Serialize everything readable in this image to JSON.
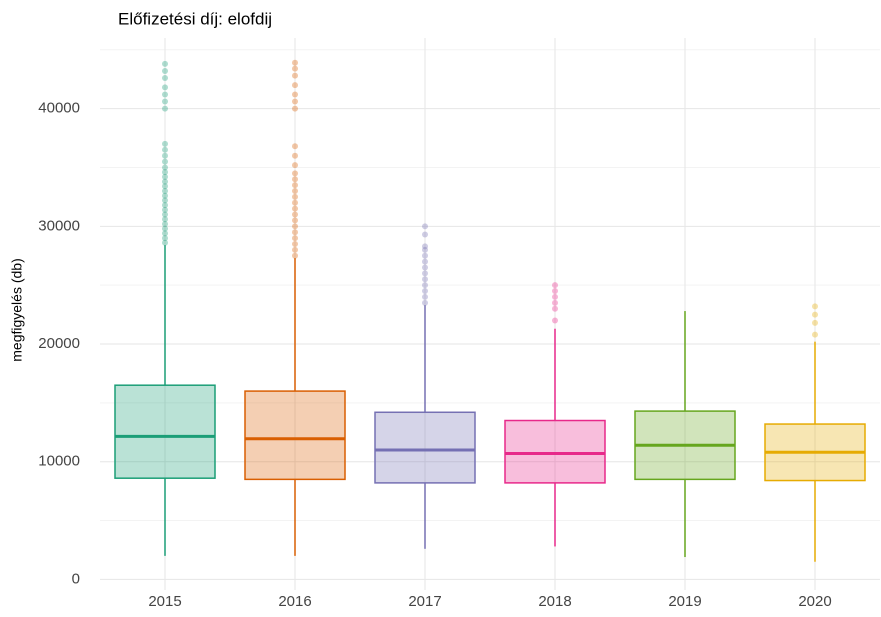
{
  "chart_data": {
    "type": "box",
    "title": "Előfizetési díj: elofdij",
    "y_label": "megfigyelés (db)",
    "categories": [
      "2015",
      "2016",
      "2017",
      "2018",
      "2019",
      "2020"
    ],
    "ylim": [
      -900,
      46000
    ],
    "yticks": [
      0,
      10000,
      20000,
      30000,
      40000
    ],
    "grid": true,
    "boxes": [
      {
        "color": "#1b9e77",
        "low": 2000,
        "q1": 8600,
        "median": 12150,
        "q3": 16500,
        "high": 28400,
        "outliers": [
          28600,
          29000,
          29400,
          29800,
          30200,
          30600,
          31000,
          31400,
          31800,
          32200,
          32600,
          33000,
          33400,
          33800,
          34200,
          34600,
          35000,
          35500,
          36000,
          36500,
          37000,
          40000,
          40600,
          41200,
          41800,
          42600,
          43200,
          43800
        ]
      },
      {
        "color": "#d95f02",
        "low": 2000,
        "q1": 8500,
        "median": 11950,
        "q3": 16000,
        "high": 27300,
        "outliers": [
          27500,
          28000,
          28500,
          29000,
          29500,
          30000,
          30500,
          31000,
          31500,
          32000,
          32500,
          33000,
          33500,
          34000,
          34500,
          35200,
          36000,
          36800,
          40000,
          40600,
          41200,
          42000,
          42800,
          43400,
          43900
        ]
      },
      {
        "color": "#7570b3",
        "low": 2600,
        "q1": 8200,
        "median": 11000,
        "q3": 14200,
        "high": 23300,
        "outliers": [
          23500,
          24000,
          24500,
          25000,
          25500,
          26000,
          26500,
          27000,
          27500,
          28000,
          28300,
          29300,
          30000
        ]
      },
      {
        "color": "#e7298a",
        "low": 2800,
        "q1": 8200,
        "median": 10700,
        "q3": 13500,
        "high": 21300,
        "outliers": [
          22000,
          23000,
          23500,
          24000,
          24500,
          25000
        ]
      },
      {
        "color": "#66a61e",
        "low": 1900,
        "q1": 8500,
        "median": 11400,
        "q3": 14300,
        "high": 22800,
        "outliers": []
      },
      {
        "color": "#e6ab02",
        "low": 1500,
        "q1": 8400,
        "median": 10800,
        "q3": 13200,
        "high": 20200,
        "outliers": [
          20800,
          21800,
          22500,
          23200
        ]
      }
    ]
  }
}
